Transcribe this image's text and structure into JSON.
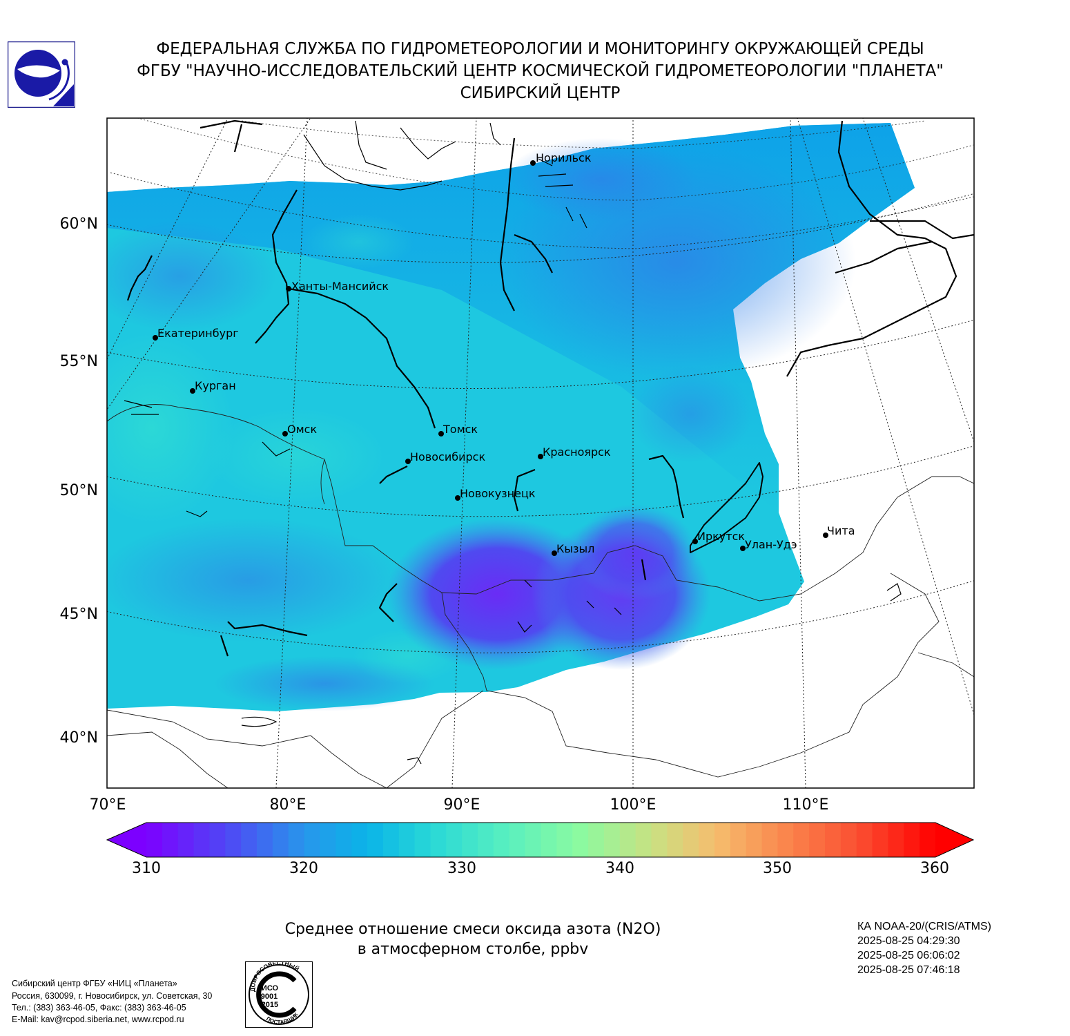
{
  "header": {
    "line1": "ФЕДЕРАЛЬНАЯ СЛУЖБА ПО ГИДРОМЕТЕОРОЛОГИИ И МОНИТОРИНГУ ОКРУЖАЮЩЕЙ СРЕДЫ",
    "line2": "ФГБУ \"НАУЧНО-ИССЛЕДОВАТЕЛЬСКИЙ ЦЕНТР КОСМИЧЕСКОЙ ГИДРОМЕТЕОРОЛОГИИ \"ПЛАНЕТА\"",
    "line3": "СИБИРСКИЙ ЦЕНТР"
  },
  "map": {
    "lat_labels": [
      "60°N",
      "55°N",
      "50°N",
      "45°N",
      "40°N"
    ],
    "lon_labels": [
      "70°E",
      "80°E",
      "90°E",
      "100°E",
      "110°E"
    ],
    "cities": [
      {
        "name": "Норильск"
      },
      {
        "name": "Ханты-Мансийск"
      },
      {
        "name": "Екатеринбург"
      },
      {
        "name": "Курган"
      },
      {
        "name": "Омск"
      },
      {
        "name": "Томск"
      },
      {
        "name": "Новосибирск"
      },
      {
        "name": "Красноярск"
      },
      {
        "name": "Новокузнецк"
      },
      {
        "name": "Иркутск"
      },
      {
        "name": "Улан-Удэ"
      },
      {
        "name": "Чита"
      },
      {
        "name": "Кызыл"
      }
    ]
  },
  "colorbar": {
    "ticks": [
      "310",
      "320",
      "330",
      "340",
      "350",
      "360"
    ],
    "min": 310,
    "max": 360,
    "extend": "both"
  },
  "title": {
    "line1": "Среднее отношение смеси оксида азота (N2O)",
    "line2": "в атмосферном столбе, ppbv"
  },
  "satellite": {
    "name": "КА NOAA-20/(CRIS/ATMS)",
    "times": [
      "2025-08-25 04:29:30",
      "2025-08-25 06:06:02",
      "2025-08-25 07:46:18"
    ]
  },
  "footer": {
    "lines": [
      "Сибирский центр ФГБУ «НИЦ «Планета»",
      "Россия, 630099, г. Новосибирск, ул. Советская, 30",
      "Тел.: (383) 363-46-05, Факс: (383) 363-46-05",
      "E-Mail: kav@rcpod.siberia.net, www.rcpod.ru"
    ],
    "iso_badge": {
      "top": "ДОБРОСОВЕСТНЫЙ",
      "l1": "ИСО",
      "l2": "9001",
      "l3": "-2015",
      "bottom": "ПОСТАВЩИК"
    }
  }
}
